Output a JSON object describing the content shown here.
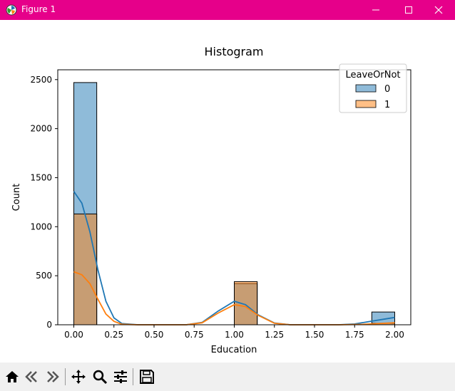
{
  "window": {
    "title": "Figure 1"
  },
  "toolbar": {
    "buttons": [
      {
        "name": "home-icon"
      },
      {
        "name": "back-icon"
      },
      {
        "name": "forward-icon"
      },
      {
        "name": "pan-icon"
      },
      {
        "name": "zoom-icon"
      },
      {
        "name": "configure-subplots-icon"
      },
      {
        "name": "save-icon"
      }
    ]
  },
  "chart_data": {
    "type": "histogram",
    "title": "Histogram",
    "xlabel": "Education",
    "ylabel": "Count",
    "xlim": [
      -0.1,
      2.1
    ],
    "ylim": [
      0,
      2600
    ],
    "xticks": [
      "0.00",
      "0.25",
      "0.50",
      "0.75",
      "1.00",
      "1.25",
      "1.50",
      "1.75",
      "2.00"
    ],
    "yticks": [
      "0",
      "500",
      "1000",
      "1500",
      "2000",
      "2500"
    ],
    "bin_width": 0.1429,
    "legend": {
      "title": "LeaveOrNot",
      "entries": [
        "0",
        "1"
      ],
      "position": "upper right"
    },
    "series": [
      {
        "name": "0",
        "color": "#1f77b4",
        "bars": [
          {
            "x": 0.0,
            "value": 2470
          },
          {
            "x": 1.0,
            "value": 420
          },
          {
            "x": 1.857,
            "value": 130
          }
        ],
        "kde": [
          [
            0,
            1360
          ],
          [
            0.05,
            1240
          ],
          [
            0.1,
            950
          ],
          [
            0.15,
            560
          ],
          [
            0.2,
            240
          ],
          [
            0.25,
            70
          ],
          [
            0.3,
            12
          ],
          [
            0.4,
            0
          ],
          [
            0.7,
            0
          ],
          [
            0.8,
            25
          ],
          [
            0.9,
            140
          ],
          [
            1.0,
            240
          ],
          [
            1.07,
            205
          ],
          [
            1.15,
            100
          ],
          [
            1.25,
            18
          ],
          [
            1.35,
            0
          ],
          [
            1.65,
            0
          ],
          [
            1.75,
            8
          ],
          [
            1.85,
            35
          ],
          [
            2.0,
            75
          ]
        ]
      },
      {
        "name": "1",
        "color": "#ff7f0e",
        "bars": [
          {
            "x": 0.0,
            "value": 1130
          },
          {
            "x": 1.0,
            "value": 440
          },
          {
            "x": 1.857,
            "value": 15
          }
        ],
        "kde": [
          [
            0,
            540
          ],
          [
            0.05,
            510
          ],
          [
            0.1,
            420
          ],
          [
            0.15,
            260
          ],
          [
            0.2,
            110
          ],
          [
            0.25,
            35
          ],
          [
            0.3,
            5
          ],
          [
            0.4,
            0
          ],
          [
            0.7,
            0
          ],
          [
            0.8,
            20
          ],
          [
            0.9,
            120
          ],
          [
            1.0,
            205
          ],
          [
            1.07,
            185
          ],
          [
            1.15,
            95
          ],
          [
            1.25,
            15
          ],
          [
            1.35,
            0
          ],
          [
            1.65,
            0
          ],
          [
            1.8,
            4
          ],
          [
            2.0,
            20
          ]
        ]
      }
    ]
  }
}
